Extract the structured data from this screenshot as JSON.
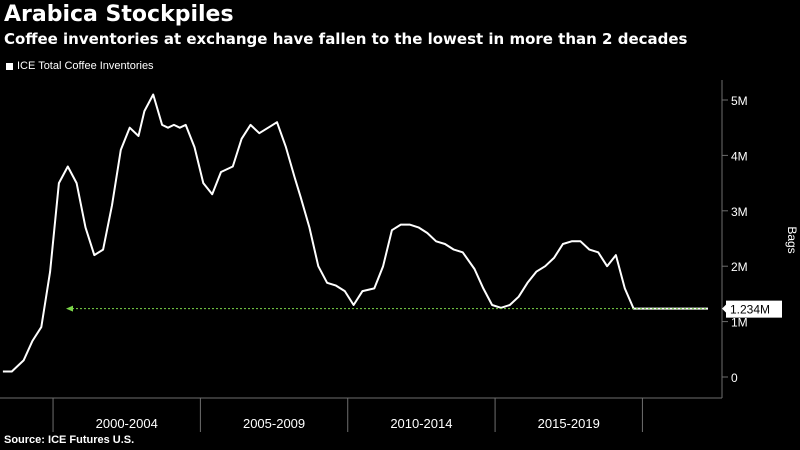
{
  "title": "Arabica Stockpiles",
  "subtitle": "Coffee inventories at exchange have fallen to the lowest in more than 2 decades",
  "source": "Source: ICE Futures U.S.",
  "colors": {
    "background": "#000000",
    "line": "#ffffff",
    "reference": "#7cd64a",
    "divider": "#6e6e6e"
  },
  "chart_data": {
    "type": "line",
    "ylabel": "Bags",
    "ylim": [
      0,
      5500000
    ],
    "yticks": [
      0,
      1000000,
      2000000,
      3000000,
      4000000,
      5000000
    ],
    "ytick_labels": [
      "0",
      "1M",
      "2M",
      "3M",
      "4M",
      "5M"
    ],
    "xlim": [
      1997.9,
      2022.4
    ],
    "x_period_boundaries": [
      1999.7,
      2004.7,
      2009.7,
      2014.7,
      2019.7
    ],
    "x_periods": [
      {
        "label": "2000-2004",
        "center": 2002.2
      },
      {
        "label": "2005-2009",
        "center": 2007.2
      },
      {
        "label": "2010-2014",
        "center": 2012.2
      },
      {
        "label": "2015-2019",
        "center": 2017.2
      }
    ],
    "legend": [
      "ICE Total Coffee Inventories"
    ],
    "series": [
      {
        "name": "ICE Total Coffee Inventories",
        "x": [
          1998.0,
          1998.3,
          1998.7,
          1999.0,
          1999.3,
          1999.6,
          1999.9,
          2000.2,
          2000.5,
          2000.8,
          2001.1,
          2001.4,
          2001.7,
          2002.0,
          2002.3,
          2002.6,
          2002.8,
          2003.1,
          2003.4,
          2003.6,
          2003.8,
          2004.0,
          2004.2,
          2004.5,
          2004.8,
          2005.1,
          2005.4,
          2005.8,
          2006.1,
          2006.4,
          2006.7,
          2007.0,
          2007.3,
          2007.6,
          2007.9,
          2008.1,
          2008.4,
          2008.7,
          2009.0,
          2009.3,
          2009.6,
          2009.9,
          2010.2,
          2010.6,
          2010.9,
          2011.2,
          2011.5,
          2011.8,
          2012.1,
          2012.4,
          2012.7,
          2013.0,
          2013.3,
          2013.6,
          2014.0,
          2014.3,
          2014.6,
          2014.9,
          2015.2,
          2015.5,
          2015.8,
          2016.1,
          2016.4,
          2016.7,
          2017.0,
          2017.3,
          2017.6,
          2017.9,
          2018.2,
          2018.5,
          2018.8,
          2019.1,
          2019.4,
          2019.6,
          2019.9,
          2020.1,
          2020.3,
          2020.5,
          2020.7,
          2020.9,
          2021.1,
          2021.3,
          2021.5,
          2021.7,
          2021.85,
          2022.0
        ],
        "values": [
          100000,
          100000,
          300000,
          650000,
          900000,
          1900000,
          3500000,
          3800000,
          3500000,
          2700000,
          2200000,
          2300000,
          3100000,
          4100000,
          4500000,
          4350000,
          4800000,
          5100000,
          4550000,
          4500000,
          4550000,
          4500000,
          4550000,
          4150000,
          3500000,
          3300000,
          3700000,
          3800000,
          4300000,
          4550000,
          4400000,
          4500000,
          4600000,
          4150000,
          3600000,
          3250000,
          2700000,
          2000000,
          1700000,
          1650000,
          1550000,
          1300000,
          1550000,
          1600000,
          2000000,
          2650000,
          2750000,
          2750000,
          2700000,
          2600000,
          2450000,
          2400000,
          2300000,
          2250000,
          1950000,
          1600000,
          1300000,
          1250000,
          1300000,
          1450000,
          1700000,
          1900000,
          2000000,
          2150000,
          2400000,
          2450000,
          2450000,
          2300000,
          2250000,
          2000000,
          2200000,
          1600000,
          1234000,
          1234000,
          1234000,
          1234000,
          1234000,
          1234000,
          1234000,
          1234000,
          1234000,
          1234000,
          1234000,
          1234000,
          1234000,
          1234000
        ]
      }
    ],
    "reference_line": {
      "value": 1234000,
      "label": "1.234M"
    }
  }
}
